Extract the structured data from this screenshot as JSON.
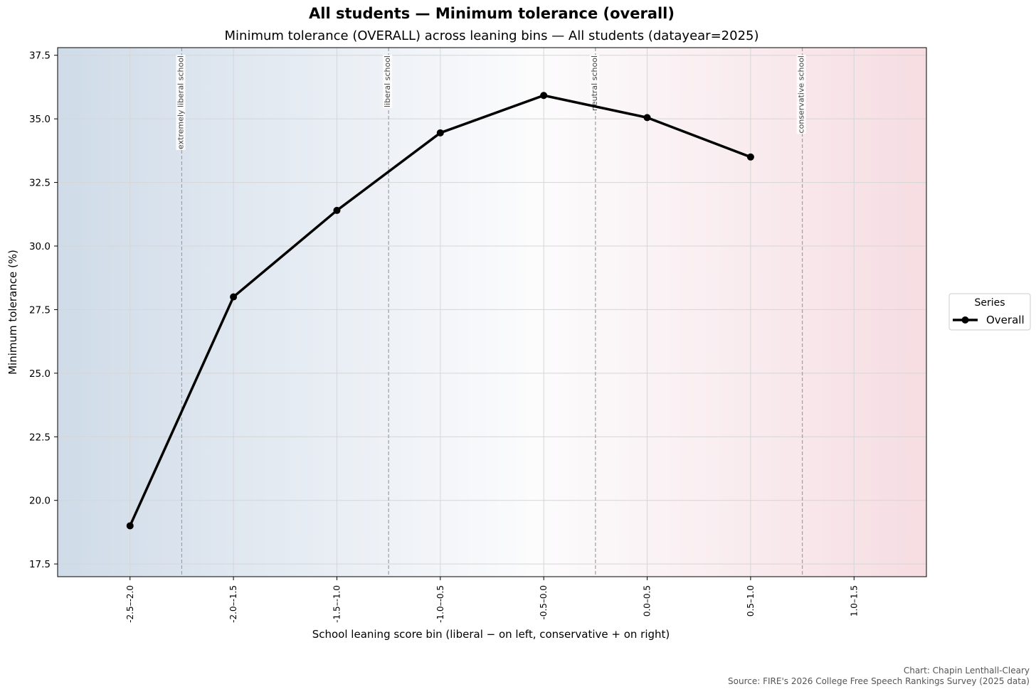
{
  "chart_data": {
    "type": "line",
    "title": "All students — Minimum tolerance (overall)",
    "subtitle": "Minimum tolerance (OVERALL) across leaning bins — All students (datayear=2025)",
    "xlabel": "School leaning score bin (liberal − on left, conservative + on right)",
    "ylabel": "Minimum tolerance (%)",
    "categories": [
      "-2.5–-2.0",
      "-2.0–-1.5",
      "-1.5–-1.0",
      "-1.0–-0.5",
      "-0.5–0.0",
      "0.0–0.5",
      "0.5–1.0",
      "1.0–1.5"
    ],
    "category_centers": [
      -2.25,
      -1.75,
      -1.25,
      -0.75,
      -0.25,
      0.25,
      0.75,
      1.25
    ],
    "xlim": [
      -2.6,
      1.6
    ],
    "ylim": [
      17.0,
      37.8
    ],
    "yticks": [
      17.5,
      20.0,
      22.5,
      25.0,
      27.5,
      30.0,
      32.5,
      35.0,
      37.5
    ],
    "series": [
      {
        "name": "Overall",
        "color": "#000000",
        "x": [
          -2.25,
          -1.75,
          -1.25,
          -0.75,
          -0.25,
          0.25,
          0.75
        ],
        "values": [
          19.0,
          28.0,
          31.4,
          34.45,
          35.92,
          35.05,
          33.5
        ]
      }
    ],
    "reference_lines": [
      {
        "x": -2.0,
        "label": "extremely liberal school"
      },
      {
        "x": -1.0,
        "label": "liberal school"
      },
      {
        "x": 0.0,
        "label": "neutral school"
      },
      {
        "x": 1.0,
        "label": "conservative school"
      }
    ],
    "background_gradient": {
      "left_color": "#cfdbe8",
      "middle_color": "#fcfcfd",
      "right_color": "#f6dde2"
    },
    "grid": true,
    "legend": {
      "title": "Series",
      "placement": "outside right"
    },
    "credit_line_1": "Chart: Chapin Lenthall-Cleary",
    "credit_line_2": "Source: FIRE's 2026 College Free Speech Rankings Survey (2025 data)"
  }
}
